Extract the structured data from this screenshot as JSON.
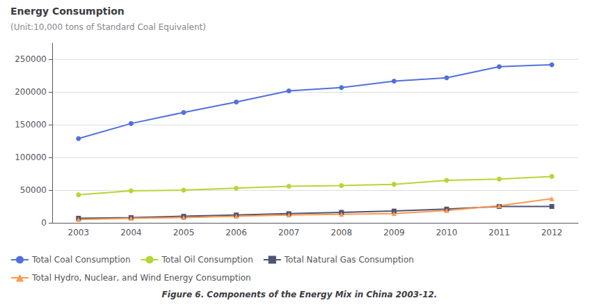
{
  "chart_data": {
    "type": "line",
    "title": "Energy Consumption",
    "subtitle": "(Unit:10,000 tons of Standard Coal Equivalent)",
    "annotations": [
      "Figure 6. Components of the Energy Mix in China 2003-12."
    ],
    "categories": [
      "2003",
      "2004",
      "2005",
      "2006",
      "2007",
      "2008",
      "2009",
      "2010",
      "2011",
      "2012"
    ],
    "series": [
      {
        "name": "Total Coal Consumption",
        "marker": "circle",
        "values": [
          129000,
          152000,
          169000,
          185000,
          202000,
          207000,
          217000,
          222000,
          239000,
          242000
        ]
      },
      {
        "name": "Total Oil Consumption",
        "marker": "circle",
        "values": [
          43000,
          49000,
          50000,
          53000,
          56000,
          57000,
          59000,
          65000,
          67000,
          71000
        ]
      },
      {
        "name": "Total Natural Gas Consumption",
        "marker": "square",
        "values": [
          7000,
          8000,
          10000,
          12000,
          14000,
          16000,
          18000,
          21000,
          25000,
          25000
        ]
      },
      {
        "name": "Total Hydro, Nuclear, and Wind Energy Consumption",
        "marker": "triangle",
        "values": [
          5000,
          7000,
          8000,
          10000,
          12000,
          13000,
          14000,
          19000,
          26000,
          37000
        ]
      }
    ],
    "ylim": [
      0,
      275000
    ],
    "yticks": [
      0,
      50000,
      100000,
      150000,
      200000,
      250000
    ],
    "grid": true,
    "legend": "bottom"
  }
}
